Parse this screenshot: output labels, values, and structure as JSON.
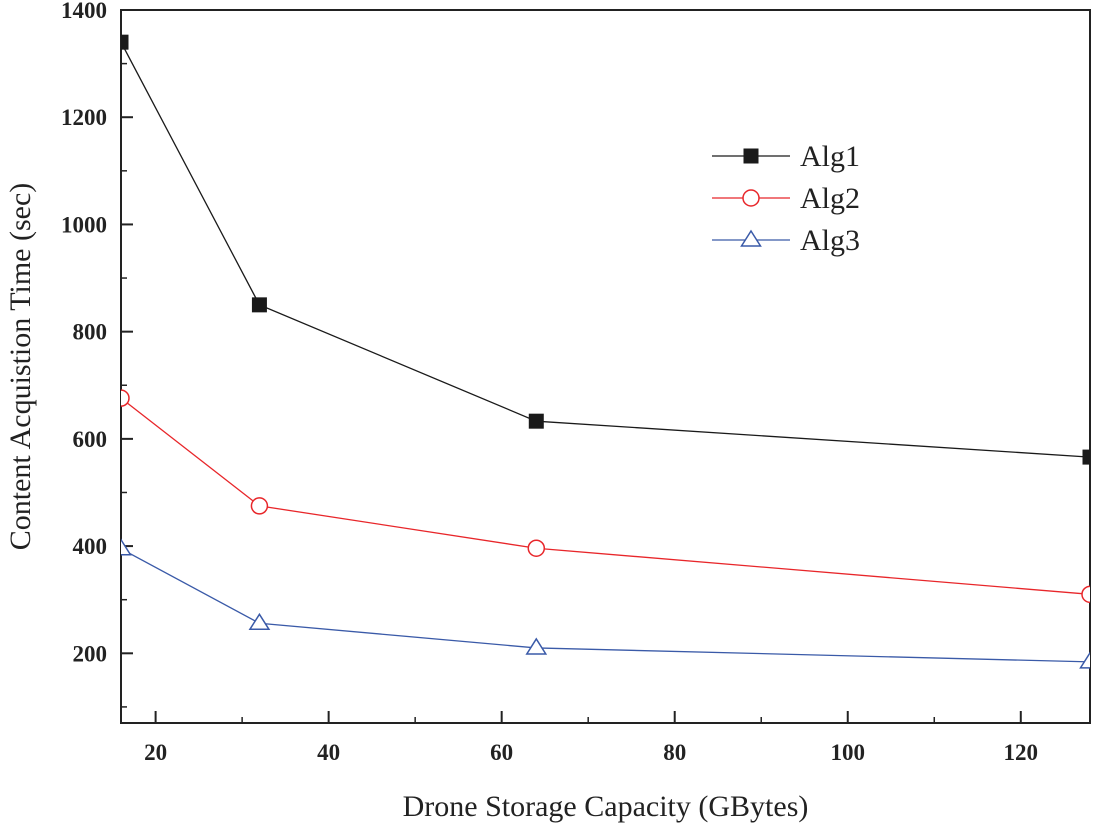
{
  "chart_data": {
    "type": "line",
    "title": "",
    "xlabel": "Drone Storage Capacity (GBytes)",
    "ylabel": "Content Acquistion Time (sec)",
    "xlim": [
      16,
      128
    ],
    "ylim": [
      70,
      1400
    ],
    "xticks": [
      20,
      40,
      60,
      80,
      100,
      120
    ],
    "xminor_ticks": [
      30,
      50,
      70,
      90,
      110
    ],
    "yticks": [
      200,
      400,
      600,
      800,
      1000,
      1200,
      1400
    ],
    "yminor_ticks": [
      100,
      300,
      500,
      700,
      900,
      1100,
      1300
    ],
    "grid": false,
    "legend_position": "top-right",
    "x": [
      16,
      32,
      64,
      128
    ],
    "series": [
      {
        "name": "Alg1",
        "values": [
          1340,
          850,
          633,
          566
        ],
        "color": "#1a1a1a",
        "marker": "filled-square"
      },
      {
        "name": "Alg2",
        "values": [
          676,
          475,
          396,
          310
        ],
        "color": "#e8262a",
        "marker": "open-circle"
      },
      {
        "name": "Alg3",
        "values": [
          395,
          256,
          210,
          184
        ],
        "color": "#3a5aa8",
        "marker": "open-triangle"
      }
    ]
  }
}
